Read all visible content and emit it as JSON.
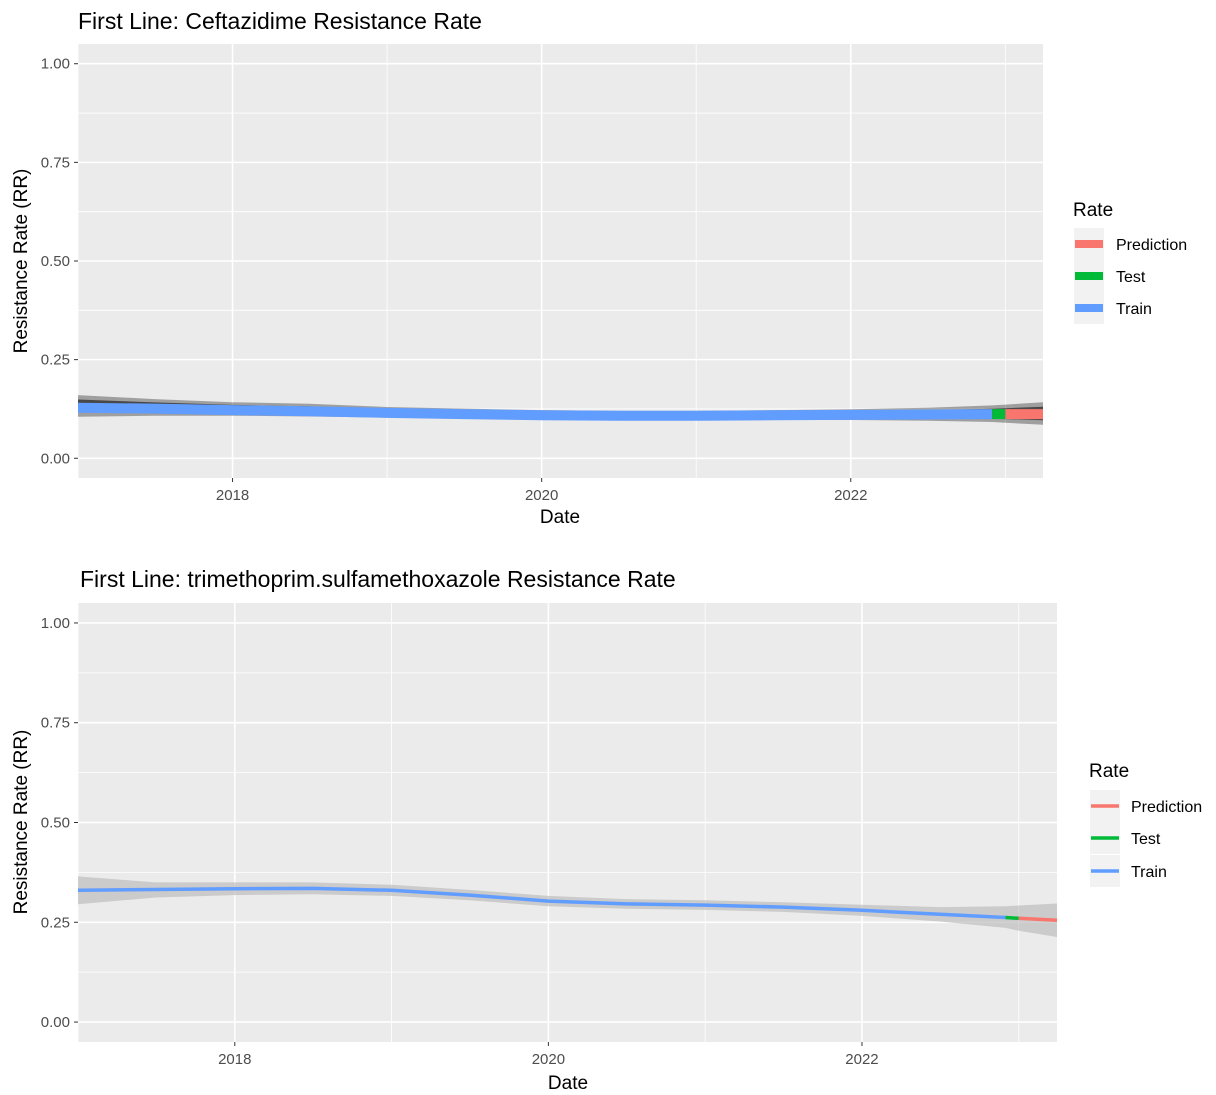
{
  "chart_data": [
    {
      "type": "line",
      "title": "First Line: Ceftazidime Resistance Rate",
      "xlabel": "Date",
      "ylabel": "Resistance Rate (RR)",
      "xlim": [
        "2017-01-01",
        "2023-03-31"
      ],
      "ylim": [
        -0.05,
        1.05
      ],
      "x_ticks": [
        "2018",
        "2020",
        "2022"
      ],
      "y_ticks": [
        "0.00",
        "0.25",
        "0.50",
        "0.75",
        "1.00"
      ],
      "grid": true,
      "legend": {
        "title": "Rate",
        "position": "right",
        "entries": [
          "Prediction",
          "Test",
          "Train"
        ]
      },
      "colors": {
        "Prediction": "#F8766D",
        "Test": "#00BA38",
        "Train": "#619CFF",
        "band": "#000000",
        "panel": "#EBEBEB",
        "grid": "#FFFFFF"
      },
      "series": [
        {
          "name": "Train",
          "x": [
            "2017-01-01",
            "2017-07-01",
            "2018-01-01",
            "2018-07-01",
            "2019-01-01",
            "2019-07-01",
            "2020-01-01",
            "2020-07-01",
            "2021-01-01",
            "2021-07-01",
            "2022-01-01",
            "2022-07-01",
            "2022-12-01"
          ],
          "y": [
            0.128,
            0.126,
            0.122,
            0.119,
            0.115,
            0.112,
            0.109,
            0.108,
            0.108,
            0.109,
            0.11,
            0.111,
            0.112
          ],
          "band": [
            [
              0.105,
              0.16
            ],
            [
              0.108,
              0.15
            ],
            [
              0.108,
              0.142
            ],
            [
              0.106,
              0.138
            ],
            [
              0.103,
              0.13
            ],
            [
              0.1,
              0.126
            ],
            [
              0.097,
              0.122
            ],
            [
              0.097,
              0.12
            ],
            [
              0.097,
              0.12
            ],
            [
              0.097,
              0.122
            ],
            [
              0.097,
              0.124
            ],
            [
              0.095,
              0.128
            ],
            [
              0.092,
              0.134
            ]
          ]
        },
        {
          "name": "Test",
          "x": [
            "2022-12-01",
            "2023-01-01"
          ],
          "y": [
            0.112,
            0.112
          ],
          "band": [
            [
              0.092,
              0.134
            ],
            [
              0.09,
              0.136
            ]
          ]
        },
        {
          "name": "Prediction",
          "x": [
            "2023-01-01",
            "2023-03-31"
          ],
          "y": [
            0.112,
            0.112
          ],
          "band": [
            [
              0.09,
              0.136
            ],
            [
              0.085,
              0.142
            ]
          ]
        }
      ]
    },
    {
      "type": "line",
      "title": "First Line: trimethoprim.sulfamethoxazole Resistance Rate",
      "xlabel": "Date",
      "ylabel": "Resistance Rate (RR)",
      "xlim": [
        "2017-01-01",
        "2023-03-31"
      ],
      "ylim": [
        -0.05,
        1.05
      ],
      "x_ticks": [
        "2018",
        "2020",
        "2022"
      ],
      "y_ticks": [
        "0.00",
        "0.25",
        "0.50",
        "0.75",
        "1.00"
      ],
      "grid": true,
      "legend": {
        "title": "Rate",
        "position": "right",
        "entries": [
          "Prediction",
          "Test",
          "Train"
        ]
      },
      "colors": {
        "Prediction": "#F8766D",
        "Test": "#00BA38",
        "Train": "#619CFF",
        "band": "#BDBDBD",
        "panel": "#EBEBEB",
        "grid": "#FFFFFF"
      },
      "series": [
        {
          "name": "Train",
          "x": [
            "2017-01-01",
            "2017-07-01",
            "2018-01-01",
            "2018-07-01",
            "2019-01-01",
            "2019-07-01",
            "2020-01-01",
            "2020-07-01",
            "2021-01-01",
            "2021-07-01",
            "2022-01-01",
            "2022-07-01",
            "2022-12-01"
          ],
          "y": [
            0.33,
            0.332,
            0.334,
            0.335,
            0.33,
            0.318,
            0.303,
            0.296,
            0.293,
            0.288,
            0.28,
            0.27,
            0.262
          ],
          "band": [
            [
              0.295,
              0.365
            ],
            [
              0.312,
              0.35
            ],
            [
              0.318,
              0.35
            ],
            [
              0.32,
              0.35
            ],
            [
              0.316,
              0.344
            ],
            [
              0.305,
              0.331
            ],
            [
              0.29,
              0.316
            ],
            [
              0.284,
              0.308
            ],
            [
              0.281,
              0.305
            ],
            [
              0.276,
              0.3
            ],
            [
              0.266,
              0.294
            ],
            [
              0.252,
              0.288
            ],
            [
              0.236,
              0.29
            ]
          ]
        },
        {
          "name": "Test",
          "x": [
            "2022-12-01",
            "2023-01-01"
          ],
          "y": [
            0.262,
            0.26
          ],
          "band": [
            [
              0.236,
              0.29
            ],
            [
              0.229,
              0.292
            ]
          ]
        },
        {
          "name": "Prediction",
          "x": [
            "2023-01-01",
            "2023-03-31"
          ],
          "y": [
            0.26,
            0.255
          ],
          "band": [
            [
              0.229,
              0.292
            ],
            [
              0.213,
              0.297
            ]
          ]
        }
      ]
    }
  ]
}
